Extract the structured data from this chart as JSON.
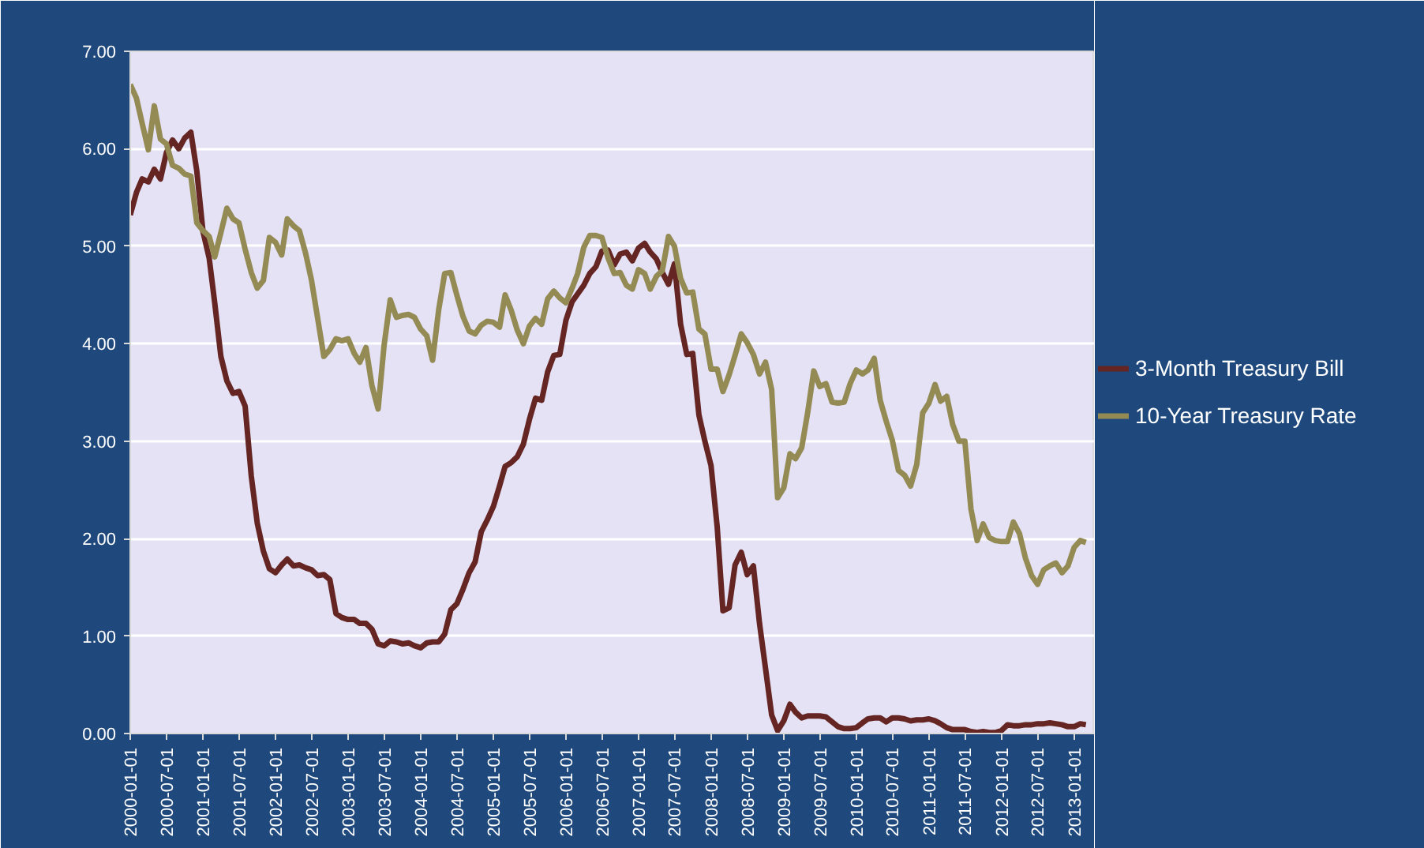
{
  "chart_data": {
    "type": "line",
    "x": [
      "2000-01",
      "2000-02",
      "2000-03",
      "2000-04",
      "2000-05",
      "2000-06",
      "2000-07",
      "2000-08",
      "2000-09",
      "2000-10",
      "2000-11",
      "2000-12",
      "2001-01",
      "2001-02",
      "2001-03",
      "2001-04",
      "2001-05",
      "2001-06",
      "2001-07",
      "2001-08",
      "2001-09",
      "2001-10",
      "2001-11",
      "2001-12",
      "2002-01",
      "2002-02",
      "2002-03",
      "2002-04",
      "2002-05",
      "2002-06",
      "2002-07",
      "2002-08",
      "2002-09",
      "2002-10",
      "2002-11",
      "2002-12",
      "2003-01",
      "2003-02",
      "2003-03",
      "2003-04",
      "2003-05",
      "2003-06",
      "2003-07",
      "2003-08",
      "2003-09",
      "2003-10",
      "2003-11",
      "2003-12",
      "2004-01",
      "2004-02",
      "2004-03",
      "2004-04",
      "2004-05",
      "2004-06",
      "2004-07",
      "2004-08",
      "2004-09",
      "2004-10",
      "2004-11",
      "2004-12",
      "2005-01",
      "2005-02",
      "2005-03",
      "2005-04",
      "2005-05",
      "2005-06",
      "2005-07",
      "2005-08",
      "2005-09",
      "2005-10",
      "2005-11",
      "2005-12",
      "2006-01",
      "2006-02",
      "2006-03",
      "2006-04",
      "2006-05",
      "2006-06",
      "2006-07",
      "2006-08",
      "2006-09",
      "2006-10",
      "2006-11",
      "2006-12",
      "2007-01",
      "2007-02",
      "2007-03",
      "2007-04",
      "2007-05",
      "2007-06",
      "2007-07",
      "2007-08",
      "2007-09",
      "2007-10",
      "2007-11",
      "2007-12",
      "2008-01",
      "2008-02",
      "2008-03",
      "2008-04",
      "2008-05",
      "2008-06",
      "2008-07",
      "2008-08",
      "2008-09",
      "2008-10",
      "2008-11",
      "2008-12",
      "2009-01",
      "2009-02",
      "2009-03",
      "2009-04",
      "2009-05",
      "2009-06",
      "2009-07",
      "2009-08",
      "2009-09",
      "2009-10",
      "2009-11",
      "2009-12",
      "2010-01",
      "2010-02",
      "2010-03",
      "2010-04",
      "2010-05",
      "2010-06",
      "2010-07",
      "2010-08",
      "2010-09",
      "2010-10",
      "2010-11",
      "2010-12",
      "2011-01",
      "2011-02",
      "2011-03",
      "2011-04",
      "2011-05",
      "2011-06",
      "2011-07",
      "2011-08",
      "2011-09",
      "2011-10",
      "2011-11",
      "2011-12",
      "2012-01",
      "2012-02",
      "2012-03",
      "2012-04",
      "2012-05",
      "2012-06",
      "2012-07",
      "2012-08",
      "2012-09",
      "2012-10",
      "2012-11",
      "2012-12",
      "2013-01",
      "2013-02",
      "2013-03"
    ],
    "series": [
      {
        "name": "3-Month Treasury Bill",
        "color": "#652523",
        "values": [
          5.32,
          5.55,
          5.69,
          5.66,
          5.79,
          5.69,
          5.96,
          6.09,
          6.0,
          6.11,
          6.17,
          5.77,
          5.15,
          4.88,
          4.42,
          3.87,
          3.62,
          3.49,
          3.51,
          3.36,
          2.64,
          2.16,
          1.87,
          1.69,
          1.65,
          1.73,
          1.79,
          1.72,
          1.73,
          1.7,
          1.68,
          1.62,
          1.63,
          1.58,
          1.23,
          1.19,
          1.17,
          1.17,
          1.13,
          1.13,
          1.07,
          0.92,
          0.9,
          0.95,
          0.94,
          0.92,
          0.93,
          0.9,
          0.88,
          0.93,
          0.94,
          0.94,
          1.02,
          1.27,
          1.33,
          1.48,
          1.65,
          1.76,
          2.07,
          2.19,
          2.33,
          2.54,
          2.74,
          2.78,
          2.84,
          2.97,
          3.22,
          3.44,
          3.42,
          3.71,
          3.88,
          3.89,
          4.24,
          4.43,
          4.51,
          4.6,
          4.72,
          4.79,
          4.95,
          4.96,
          4.81,
          4.92,
          4.94,
          4.85,
          4.98,
          5.03,
          4.94,
          4.87,
          4.73,
          4.61,
          4.82,
          4.2,
          3.89,
          3.9,
          3.27,
          3.0,
          2.75,
          2.12,
          1.26,
          1.29,
          1.73,
          1.86,
          1.63,
          1.72,
          1.13,
          0.67,
          0.19,
          0.03,
          0.13,
          0.3,
          0.22,
          0.16,
          0.18,
          0.18,
          0.18,
          0.17,
          0.12,
          0.07,
          0.05,
          0.05,
          0.06,
          0.11,
          0.15,
          0.16,
          0.16,
          0.12,
          0.16,
          0.16,
          0.15,
          0.13,
          0.14,
          0.14,
          0.15,
          0.13,
          0.1,
          0.06,
          0.04,
          0.04,
          0.04,
          0.02,
          0.01,
          0.02,
          0.01,
          0.01,
          0.03,
          0.09,
          0.08,
          0.08,
          0.09,
          0.09,
          0.1,
          0.1,
          0.11,
          0.1,
          0.09,
          0.07,
          0.07,
          0.1,
          0.09
        ]
      },
      {
        "name": "10-Year Treasury Rate",
        "color": "#948a54",
        "values": [
          6.66,
          6.52,
          6.26,
          5.99,
          6.44,
          6.1,
          6.05,
          5.83,
          5.8,
          5.74,
          5.72,
          5.24,
          5.16,
          5.1,
          4.89,
          5.14,
          5.39,
          5.28,
          5.24,
          4.97,
          4.73,
          4.57,
          4.65,
          5.09,
          5.04,
          4.91,
          5.28,
          5.21,
          5.16,
          4.93,
          4.65,
          4.26,
          3.87,
          3.94,
          4.05,
          4.03,
          4.05,
          3.9,
          3.81,
          3.96,
          3.57,
          3.33,
          3.98,
          4.45,
          4.27,
          4.29,
          4.3,
          4.27,
          4.15,
          4.08,
          3.83,
          4.35,
          4.72,
          4.73,
          4.5,
          4.28,
          4.13,
          4.1,
          4.19,
          4.23,
          4.22,
          4.17,
          4.5,
          4.34,
          4.14,
          4.0,
          4.18,
          4.26,
          4.2,
          4.46,
          4.54,
          4.47,
          4.42,
          4.57,
          4.72,
          4.99,
          5.11,
          5.11,
          5.09,
          4.88,
          4.72,
          4.73,
          4.6,
          4.56,
          4.76,
          4.72,
          4.56,
          4.69,
          4.75,
          5.1,
          5.0,
          4.67,
          4.52,
          4.53,
          4.15,
          4.1,
          3.74,
          3.74,
          3.51,
          3.68,
          3.88,
          4.1,
          4.01,
          3.89,
          3.69,
          3.81,
          3.53,
          2.42,
          2.52,
          2.87,
          2.82,
          2.93,
          3.29,
          3.72,
          3.56,
          3.59,
          3.4,
          3.39,
          3.4,
          3.59,
          3.73,
          3.69,
          3.73,
          3.85,
          3.42,
          3.2,
          3.01,
          2.7,
          2.65,
          2.54,
          2.76,
          3.29,
          3.39,
          3.58,
          3.41,
          3.46,
          3.17,
          3.0,
          3.0,
          2.3,
          1.98,
          2.15,
          2.01,
          1.98,
          1.97,
          1.97,
          2.17,
          2.05,
          1.8,
          1.62,
          1.53,
          1.68,
          1.72,
          1.75,
          1.65,
          1.72,
          1.91,
          1.98,
          1.96
        ]
      }
    ],
    "xlim": [
      "2000-01-01",
      "2013-04-15"
    ],
    "xticks": [
      "2000-01-01",
      "2000-07-01",
      "2001-01-01",
      "2001-07-01",
      "2002-01-01",
      "2002-07-01",
      "2003-01-01",
      "2003-07-01",
      "2004-01-01",
      "2004-07-01",
      "2005-01-01",
      "2005-07-01",
      "2006-01-01",
      "2006-07-01",
      "2007-01-01",
      "2007-07-01",
      "2008-01-01",
      "2008-07-01",
      "2009-01-01",
      "2009-07-01",
      "2010-01-01",
      "2010-07-01",
      "2011-01-01",
      "2011-07-01",
      "2012-01-01",
      "2012-07-01",
      "2013-01-01"
    ],
    "ylim": [
      0,
      7
    ],
    "yticks": [
      {
        "value": 0,
        "label": "0.00"
      },
      {
        "value": 1,
        "label": "1.00"
      },
      {
        "value": 2,
        "label": "2.00"
      },
      {
        "value": 3,
        "label": "3.00"
      },
      {
        "value": 4,
        "label": "4.00"
      },
      {
        "value": 5,
        "label": "5.00"
      },
      {
        "value": 6,
        "label": "6.00"
      },
      {
        "value": 7,
        "label": "7.00"
      }
    ],
    "grid": "y",
    "legend": "right",
    "marker": "none",
    "line_style": "solid"
  }
}
